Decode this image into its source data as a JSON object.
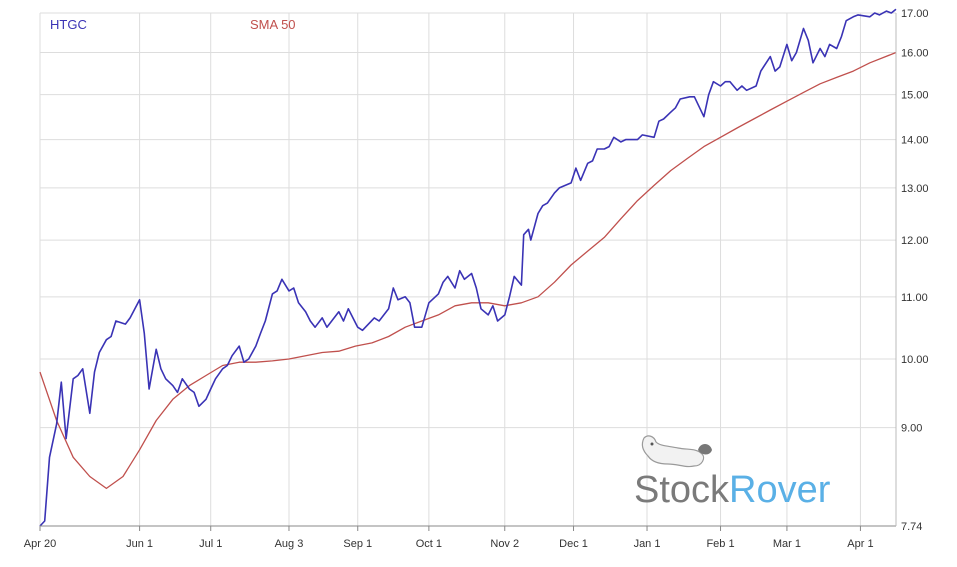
{
  "chart_data": {
    "type": "line",
    "title": "",
    "xlabel": "",
    "ylabel": "",
    "ylim": [
      7.74,
      17.0
    ],
    "y_scale": "log",
    "y_axis_position": "right",
    "grid": true,
    "legend_placement": "top-left",
    "x_tick_labels": [
      "Apr 20",
      "Jun 1",
      "Jul 1",
      "Aug 3",
      "Sep 1",
      "Oct 1",
      "Nov 2",
      "Dec 1",
      "Jan 1",
      "Feb 1",
      "Mar 1",
      "Apr 1"
    ],
    "y_tick_labels": [
      "7.74",
      "9.00",
      "10.00",
      "11.00",
      "12.00",
      "13.00",
      "14.00",
      "15.00",
      "16.00",
      "17.00"
    ],
    "x_ticks": [
      {
        "label": "Apr 20",
        "date": "2020-04-20"
      },
      {
        "label": "Jun 1",
        "date": "2020-06-01"
      },
      {
        "label": "Jul 1",
        "date": "2020-07-01"
      },
      {
        "label": "Aug 3",
        "date": "2020-08-03"
      },
      {
        "label": "Sep 1",
        "date": "2020-09-01"
      },
      {
        "label": "Oct 1",
        "date": "2020-10-01"
      },
      {
        "label": "Nov 2",
        "date": "2020-11-02"
      },
      {
        "label": "Dec 1",
        "date": "2020-12-01"
      },
      {
        "label": "Jan 1",
        "date": "2021-01-01"
      },
      {
        "label": "Feb 1",
        "date": "2021-02-01"
      },
      {
        "label": "Mar 1",
        "date": "2021-03-01"
      },
      {
        "label": "Apr 1",
        "date": "2021-04-01"
      }
    ],
    "x_range": [
      "2020-04-20",
      "2021-04-16"
    ],
    "series": [
      {
        "name": "HTGC",
        "color": "#3a33b5",
        "points": [
          [
            "2020-04-20",
            7.74
          ],
          [
            "2020-04-22",
            7.8
          ],
          [
            "2020-04-24",
            8.6
          ],
          [
            "2020-04-27",
            9.05
          ],
          [
            "2020-04-29",
            9.65
          ],
          [
            "2020-05-01",
            8.85
          ],
          [
            "2020-05-04",
            9.7
          ],
          [
            "2020-05-06",
            9.75
          ],
          [
            "2020-05-08",
            9.85
          ],
          [
            "2020-05-11",
            9.2
          ],
          [
            "2020-05-13",
            9.8
          ],
          [
            "2020-05-15",
            10.1
          ],
          [
            "2020-05-18",
            10.3
          ],
          [
            "2020-05-20",
            10.35
          ],
          [
            "2020-05-22",
            10.6
          ],
          [
            "2020-05-26",
            10.55
          ],
          [
            "2020-05-28",
            10.65
          ],
          [
            "2020-06-01",
            10.95
          ],
          [
            "2020-06-03",
            10.4
          ],
          [
            "2020-06-05",
            9.55
          ],
          [
            "2020-06-08",
            10.15
          ],
          [
            "2020-06-10",
            9.85
          ],
          [
            "2020-06-12",
            9.7
          ],
          [
            "2020-06-15",
            9.6
          ],
          [
            "2020-06-17",
            9.5
          ],
          [
            "2020-06-19",
            9.7
          ],
          [
            "2020-06-22",
            9.55
          ],
          [
            "2020-06-24",
            9.5
          ],
          [
            "2020-06-26",
            9.3
          ],
          [
            "2020-06-29",
            9.4
          ],
          [
            "2020-07-01",
            9.55
          ],
          [
            "2020-07-03",
            9.7
          ],
          [
            "2020-07-06",
            9.85
          ],
          [
            "2020-07-08",
            9.9
          ],
          [
            "2020-07-10",
            10.05
          ],
          [
            "2020-07-13",
            10.2
          ],
          [
            "2020-07-15",
            9.95
          ],
          [
            "2020-07-17",
            10.0
          ],
          [
            "2020-07-20",
            10.2
          ],
          [
            "2020-07-22",
            10.4
          ],
          [
            "2020-07-24",
            10.6
          ],
          [
            "2020-07-27",
            11.05
          ],
          [
            "2020-07-29",
            11.1
          ],
          [
            "2020-07-31",
            11.3
          ],
          [
            "2020-08-03",
            11.1
          ],
          [
            "2020-08-05",
            11.15
          ],
          [
            "2020-08-07",
            10.9
          ],
          [
            "2020-08-10",
            10.75
          ],
          [
            "2020-08-12",
            10.6
          ],
          [
            "2020-08-14",
            10.5
          ],
          [
            "2020-08-17",
            10.65
          ],
          [
            "2020-08-19",
            10.5
          ],
          [
            "2020-08-21",
            10.6
          ],
          [
            "2020-08-24",
            10.75
          ],
          [
            "2020-08-26",
            10.6
          ],
          [
            "2020-08-28",
            10.8
          ],
          [
            "2020-09-01",
            10.5
          ],
          [
            "2020-09-03",
            10.45
          ],
          [
            "2020-09-08",
            10.65
          ],
          [
            "2020-09-10",
            10.6
          ],
          [
            "2020-09-14",
            10.8
          ],
          [
            "2020-09-16",
            11.15
          ],
          [
            "2020-09-18",
            10.95
          ],
          [
            "2020-09-21",
            11.0
          ],
          [
            "2020-09-23",
            10.9
          ],
          [
            "2020-09-25",
            10.5
          ],
          [
            "2020-09-28",
            10.5
          ],
          [
            "2020-10-01",
            10.9
          ],
          [
            "2020-10-05",
            11.05
          ],
          [
            "2020-10-07",
            11.25
          ],
          [
            "2020-10-09",
            11.35
          ],
          [
            "2020-10-12",
            11.15
          ],
          [
            "2020-10-14",
            11.45
          ],
          [
            "2020-10-16",
            11.3
          ],
          [
            "2020-10-19",
            11.4
          ],
          [
            "2020-10-21",
            11.15
          ],
          [
            "2020-10-23",
            10.8
          ],
          [
            "2020-10-26",
            10.7
          ],
          [
            "2020-10-28",
            10.85
          ],
          [
            "2020-10-30",
            10.6
          ],
          [
            "2020-11-02",
            10.7
          ],
          [
            "2020-11-04",
            11.0
          ],
          [
            "2020-11-06",
            11.35
          ],
          [
            "2020-11-09",
            11.2
          ],
          [
            "2020-11-10",
            12.1
          ],
          [
            "2020-11-12",
            12.2
          ],
          [
            "2020-11-13",
            12.0
          ],
          [
            "2020-11-16",
            12.5
          ],
          [
            "2020-11-18",
            12.65
          ],
          [
            "2020-11-20",
            12.7
          ],
          [
            "2020-11-23",
            12.9
          ],
          [
            "2020-11-25",
            13.0
          ],
          [
            "2020-11-30",
            13.1
          ],
          [
            "2020-12-02",
            13.4
          ],
          [
            "2020-12-04",
            13.15
          ],
          [
            "2020-12-07",
            13.5
          ],
          [
            "2020-12-09",
            13.55
          ],
          [
            "2020-12-11",
            13.8
          ],
          [
            "2020-12-14",
            13.8
          ],
          [
            "2020-12-16",
            13.85
          ],
          [
            "2020-12-18",
            14.05
          ],
          [
            "2020-12-21",
            13.95
          ],
          [
            "2020-12-23",
            14.0
          ],
          [
            "2020-12-28",
            14.0
          ],
          [
            "2020-12-30",
            14.1
          ],
          [
            "2021-01-04",
            14.05
          ],
          [
            "2021-01-06",
            14.4
          ],
          [
            "2021-01-08",
            14.45
          ],
          [
            "2021-01-11",
            14.6
          ],
          [
            "2021-01-13",
            14.7
          ],
          [
            "2021-01-15",
            14.9
          ],
          [
            "2021-01-19",
            14.95
          ],
          [
            "2021-01-21",
            14.95
          ],
          [
            "2021-01-25",
            14.5
          ],
          [
            "2021-01-27",
            15.0
          ],
          [
            "2021-01-29",
            15.3
          ],
          [
            "2021-02-01",
            15.2
          ],
          [
            "2021-02-03",
            15.3
          ],
          [
            "2021-02-05",
            15.3
          ],
          [
            "2021-02-08",
            15.1
          ],
          [
            "2021-02-10",
            15.2
          ],
          [
            "2021-02-12",
            15.1
          ],
          [
            "2021-02-16",
            15.2
          ],
          [
            "2021-02-18",
            15.55
          ],
          [
            "2021-02-22",
            15.9
          ],
          [
            "2021-02-24",
            15.55
          ],
          [
            "2021-02-26",
            15.65
          ],
          [
            "2021-03-01",
            16.2
          ],
          [
            "2021-03-03",
            15.8
          ],
          [
            "2021-03-05",
            16.0
          ],
          [
            "2021-03-08",
            16.6
          ],
          [
            "2021-03-10",
            16.3
          ],
          [
            "2021-03-12",
            15.75
          ],
          [
            "2021-03-15",
            16.1
          ],
          [
            "2021-03-17",
            15.9
          ],
          [
            "2021-03-19",
            16.2
          ],
          [
            "2021-03-22",
            16.1
          ],
          [
            "2021-03-24",
            16.4
          ],
          [
            "2021-03-26",
            16.8
          ],
          [
            "2021-03-29",
            16.9
          ],
          [
            "2021-03-31",
            16.95
          ],
          [
            "2021-04-05",
            16.9
          ],
          [
            "2021-04-07",
            17.0
          ],
          [
            "2021-04-09",
            16.95
          ],
          [
            "2021-04-12",
            17.05
          ],
          [
            "2021-04-14",
            17.0
          ],
          [
            "2021-04-16",
            17.1
          ]
        ]
      },
      {
        "name": "SMA 50",
        "color": "#c0504d",
        "points": [
          [
            "2020-04-20",
            9.8
          ],
          [
            "2020-04-27",
            9.1
          ],
          [
            "2020-05-04",
            8.6
          ],
          [
            "2020-05-11",
            8.35
          ],
          [
            "2020-05-18",
            8.2
          ],
          [
            "2020-05-25",
            8.35
          ],
          [
            "2020-06-01",
            8.7
          ],
          [
            "2020-06-08",
            9.1
          ],
          [
            "2020-06-15",
            9.4
          ],
          [
            "2020-06-22",
            9.6
          ],
          [
            "2020-06-29",
            9.75
          ],
          [
            "2020-07-06",
            9.9
          ],
          [
            "2020-07-13",
            9.95
          ],
          [
            "2020-07-20",
            9.95
          ],
          [
            "2020-07-27",
            9.97
          ],
          [
            "2020-08-03",
            10.0
          ],
          [
            "2020-08-10",
            10.05
          ],
          [
            "2020-08-17",
            10.1
          ],
          [
            "2020-08-24",
            10.12
          ],
          [
            "2020-08-31",
            10.2
          ],
          [
            "2020-09-07",
            10.25
          ],
          [
            "2020-09-14",
            10.35
          ],
          [
            "2020-09-21",
            10.5
          ],
          [
            "2020-09-28",
            10.6
          ],
          [
            "2020-10-05",
            10.7
          ],
          [
            "2020-10-12",
            10.85
          ],
          [
            "2020-10-19",
            10.9
          ],
          [
            "2020-10-26",
            10.9
          ],
          [
            "2020-11-02",
            10.85
          ],
          [
            "2020-11-09",
            10.9
          ],
          [
            "2020-11-16",
            11.0
          ],
          [
            "2020-11-23",
            11.25
          ],
          [
            "2020-11-30",
            11.55
          ],
          [
            "2020-12-07",
            11.8
          ],
          [
            "2020-12-14",
            12.05
          ],
          [
            "2020-12-21",
            12.4
          ],
          [
            "2020-12-28",
            12.75
          ],
          [
            "2021-01-04",
            13.05
          ],
          [
            "2021-01-11",
            13.35
          ],
          [
            "2021-01-18",
            13.6
          ],
          [
            "2021-01-25",
            13.85
          ],
          [
            "2021-02-01",
            14.05
          ],
          [
            "2021-02-08",
            14.25
          ],
          [
            "2021-02-15",
            14.45
          ],
          [
            "2021-02-22",
            14.65
          ],
          [
            "2021-03-01",
            14.85
          ],
          [
            "2021-03-08",
            15.05
          ],
          [
            "2021-03-15",
            15.25
          ],
          [
            "2021-03-22",
            15.4
          ],
          [
            "2021-03-29",
            15.55
          ],
          [
            "2021-04-05",
            15.75
          ],
          [
            "2021-04-16",
            16.0
          ]
        ]
      }
    ]
  },
  "legend": {
    "items": [
      {
        "label": "HTGC",
        "color": "#3a33b5"
      },
      {
        "label": "SMA 50",
        "color": "#c0504d"
      }
    ]
  },
  "watermark": {
    "part1": "Stock",
    "part2": "Rover",
    "icon": "dog-icon"
  }
}
